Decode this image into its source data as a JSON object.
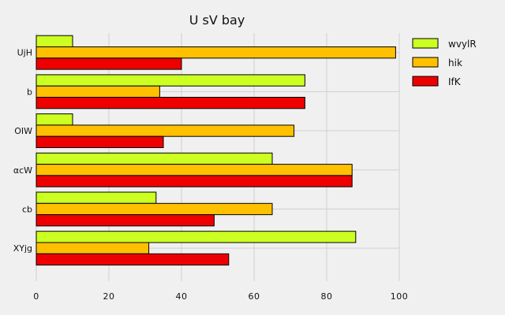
{
  "chart_data": {
    "type": "bar",
    "orientation": "horizontal",
    "title": "U sV bay",
    "xlabel": "",
    "ylabel": "",
    "categories": [
      "UjH",
      "b",
      "OIW",
      "αcW",
      "cb",
      "XYjg"
    ],
    "series": [
      {
        "name": "wvylR",
        "color": "#ccff22",
        "values": [
          10,
          74,
          10,
          65,
          33,
          88
        ]
      },
      {
        "name": "hik",
        "color": "#ffc000",
        "values": [
          99,
          34,
          71,
          87,
          65,
          31
        ]
      },
      {
        "name": "IfK",
        "color": "#ee0000",
        "values": [
          40,
          74,
          35,
          87,
          49,
          53
        ]
      }
    ],
    "xlim": [
      0,
      100
    ],
    "xticks": [
      0,
      20,
      40,
      60,
      80,
      100
    ],
    "grid": true,
    "legend_position": "top-right"
  }
}
